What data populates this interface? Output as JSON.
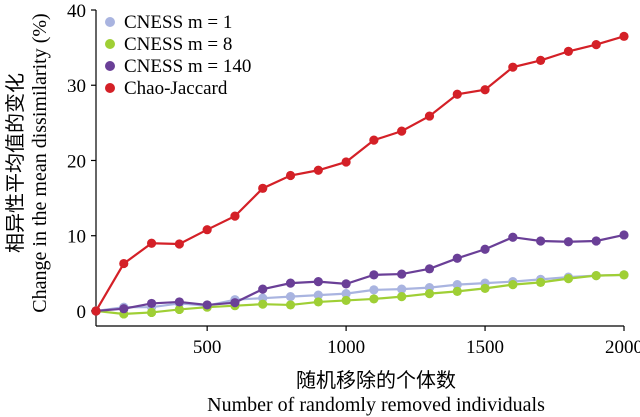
{
  "chart_data": {
    "type": "line",
    "xlabel_cn": "随机移除的个体数",
    "xlabel_en": "Number of randomly removed individuals",
    "ylabel_cn": "相异性平均值的变化",
    "ylabel_en": "Change in the mean dissimilarity (%)",
    "xlim": [
      100,
      2000
    ],
    "ylim": [
      -2,
      40
    ],
    "x_ticks": [
      500,
      1000,
      1500,
      2000
    ],
    "y_ticks": [
      0,
      10,
      20,
      30,
      40
    ],
    "legend_position": "top-left",
    "grid": false,
    "x": [
      100,
      200,
      300,
      400,
      500,
      600,
      700,
      800,
      900,
      1000,
      1100,
      1200,
      1300,
      1400,
      1500,
      1600,
      1700,
      1800,
      1900,
      2000
    ],
    "series": [
      {
        "name": "CNESS m = 1",
        "color": "#a9b4e0",
        "values": [
          0,
          0.5,
          0.5,
          1.0,
          0.7,
          1.5,
          1.7,
          1.9,
          2.1,
          2.3,
          2.8,
          2.9,
          3.1,
          3.5,
          3.7,
          3.9,
          4.2,
          4.5,
          4.7,
          4.8
        ]
      },
      {
        "name": "CNESS m = 8",
        "color": "#9fcf35",
        "values": [
          0,
          -0.4,
          -0.2,
          0.2,
          0.5,
          0.7,
          0.9,
          0.8,
          1.2,
          1.4,
          1.6,
          1.9,
          2.3,
          2.6,
          3.0,
          3.5,
          3.8,
          4.3,
          4.7,
          4.8
        ]
      },
      {
        "name": "CNESS m = 140",
        "color": "#6a3f97",
        "values": [
          0,
          0.3,
          1.0,
          1.2,
          0.8,
          1.1,
          2.9,
          3.7,
          3.9,
          3.6,
          4.8,
          4.9,
          5.6,
          7.0,
          8.2,
          9.8,
          9.3,
          9.2,
          9.3,
          10.1
        ]
      },
      {
        "name": "Chao-Jaccard",
        "color": "#d42027",
        "values": [
          0,
          6.3,
          9.0,
          8.9,
          10.8,
          12.6,
          16.3,
          18.0,
          18.7,
          19.8,
          22.7,
          23.9,
          25.9,
          28.8,
          29.4,
          32.4,
          33.3,
          34.5,
          35.4,
          36.5
        ]
      }
    ]
  }
}
